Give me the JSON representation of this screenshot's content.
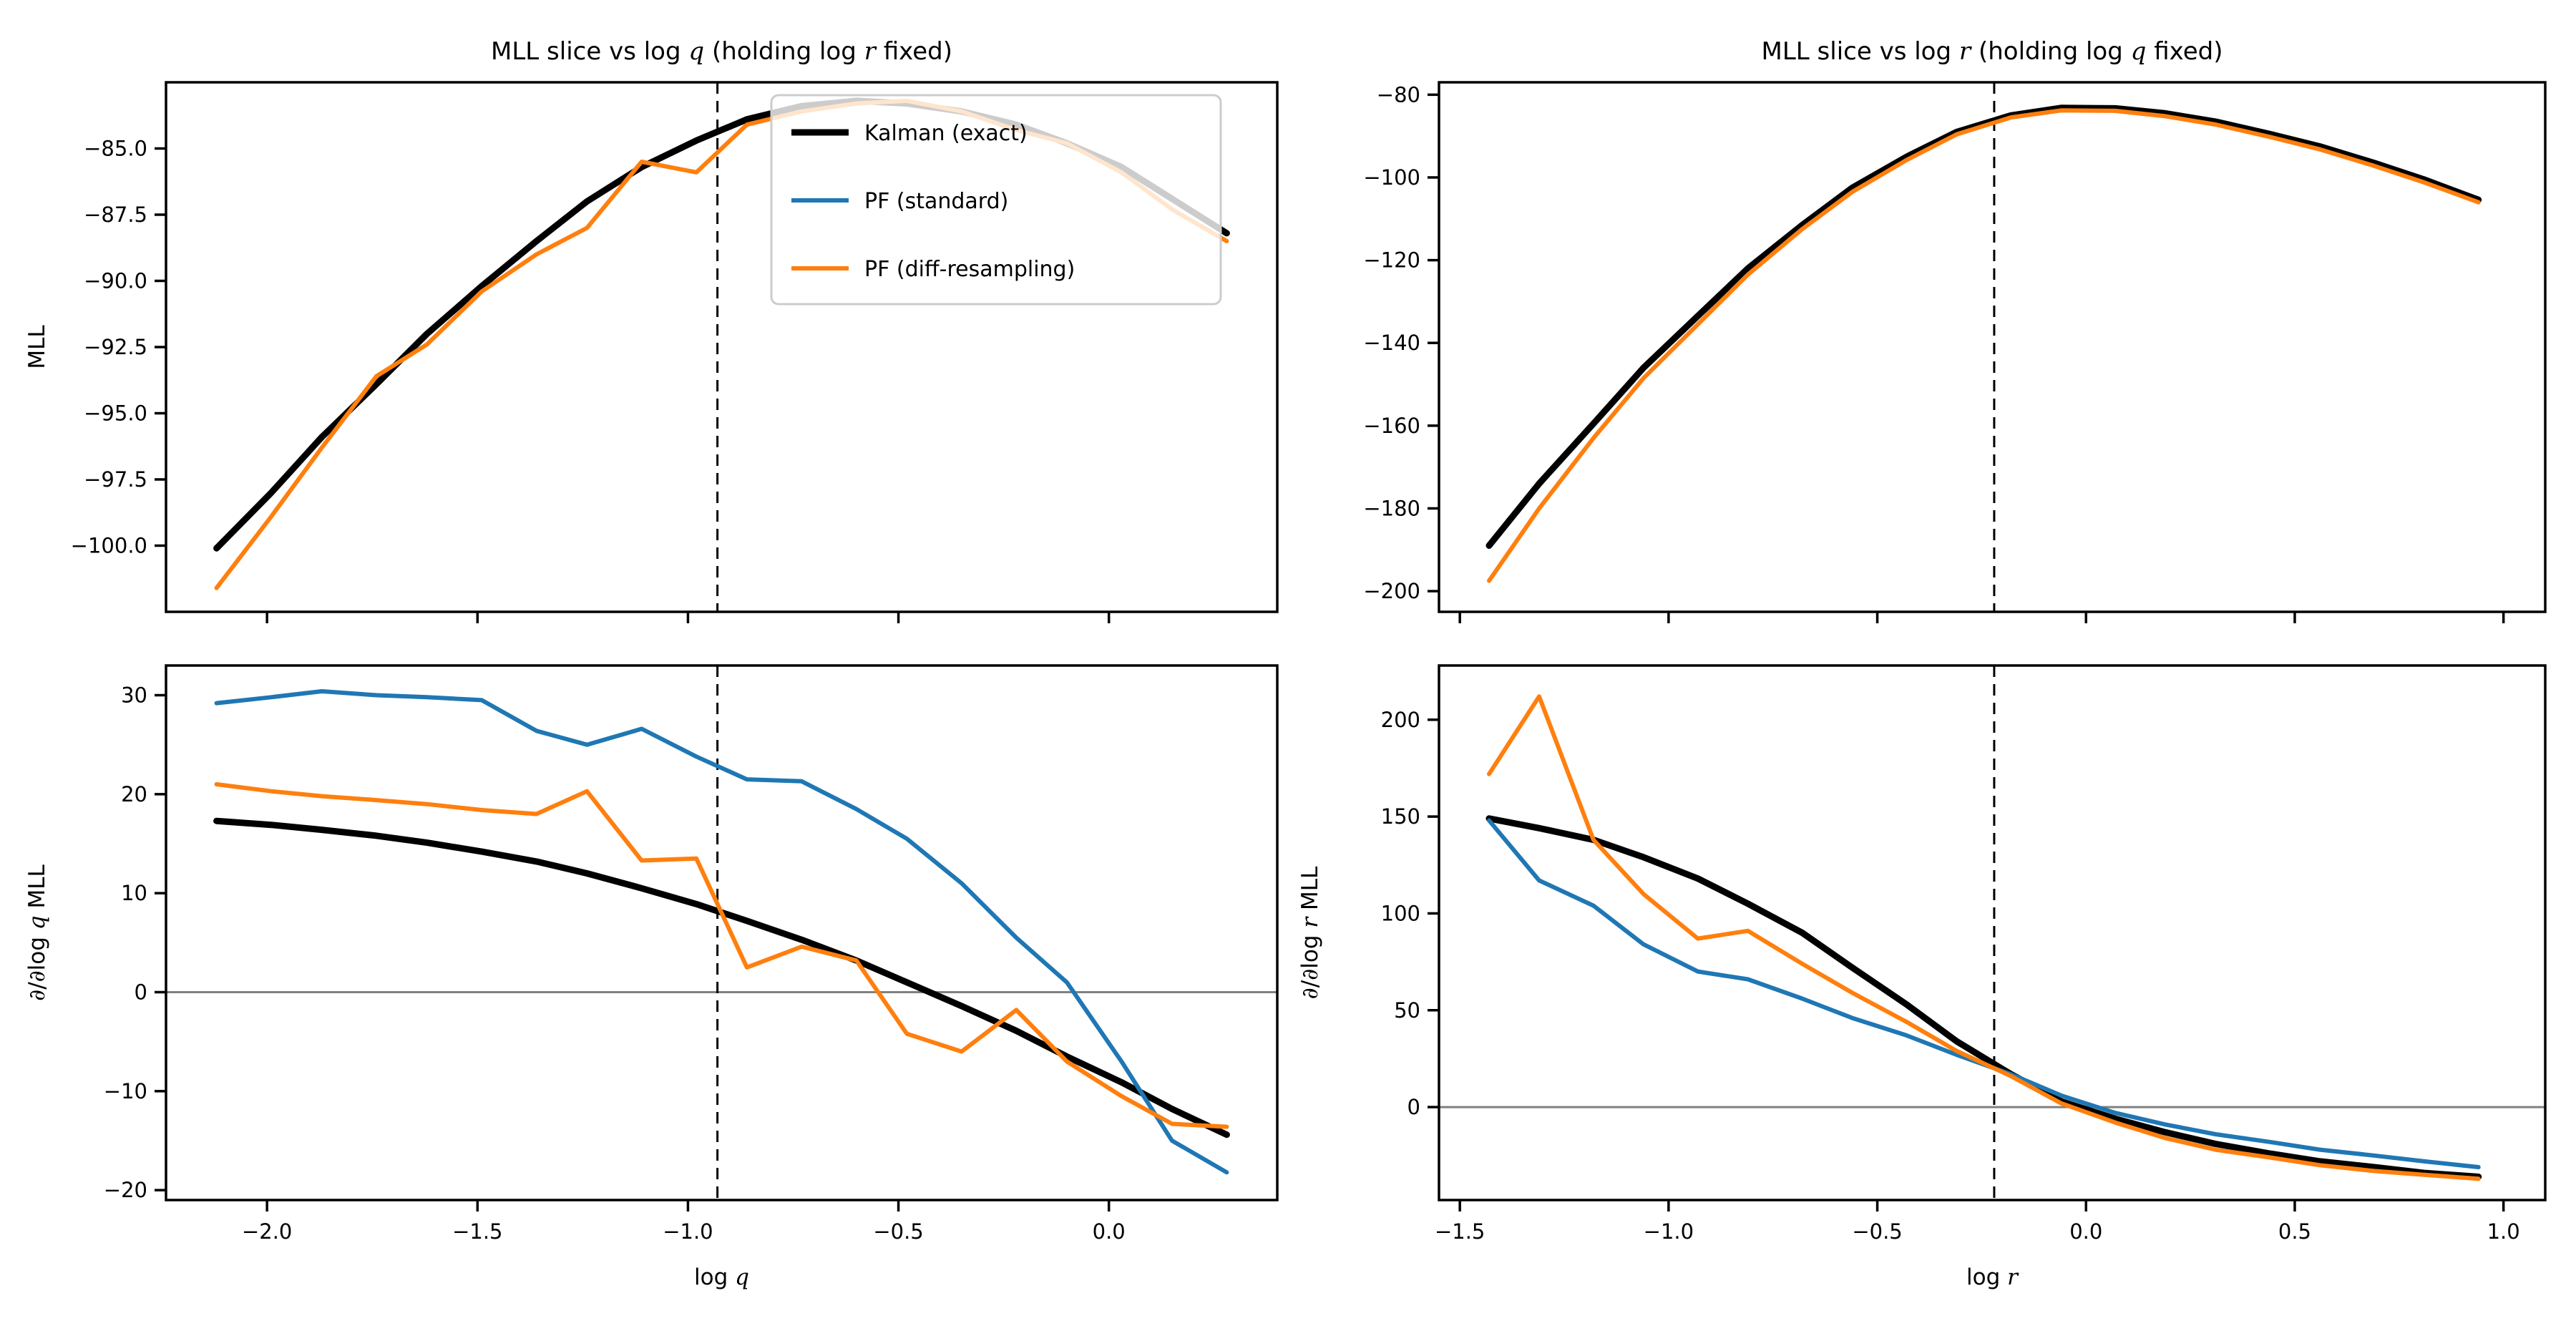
{
  "figure": {
    "background": "#ffffff",
    "accent_colors": {
      "kalman": "#000000",
      "pf_standard": "#1f77b4",
      "pf_diff": "#ff7f0e",
      "zero_line": "#808080",
      "dashed_line": "#000000",
      "legend_border": "#cccccc"
    }
  },
  "legend": {
    "entries": [
      {
        "label": "Kalman (exact)",
        "color": "#000000",
        "lw": 9
      },
      {
        "label": "PF (standard)",
        "color": "#1f77b4",
        "lw": 6
      },
      {
        "label": "PF (diff-resampling)",
        "color": "#ff7f0e",
        "lw": 6
      }
    ]
  },
  "chart_data": [
    {
      "type": "line",
      "id": "mll-vs-logq",
      "title": "MLL slice vs log q (holding log r fixed)",
      "xlabel": "",
      "ylabel": "MLL",
      "xlim": [
        -2.24,
        0.4
      ],
      "ylim": [
        -102.5,
        -82.5
      ],
      "grid": false,
      "vline": -0.93,
      "hline": null,
      "has_legend": true,
      "xticks": {
        "values": [
          -2.0,
          -1.5,
          -1.0,
          -0.5,
          0.0
        ],
        "labels": [
          "−2.0",
          "−1.5",
          "−1.0",
          "−0.5",
          "0.0"
        ],
        "show_labels": false
      },
      "yticks": {
        "values": [
          -85.0,
          -87.5,
          -90.0,
          -92.5,
          -95.0,
          -97.5,
          -100.0
        ],
        "labels": [
          "−85.0",
          "−87.5",
          "−90.0",
          "−92.5",
          "−95.0",
          "−97.5",
          "−100.0"
        ]
      },
      "x": [
        -2.12,
        -1.99,
        -1.87,
        -1.74,
        -1.62,
        -1.49,
        -1.36,
        -1.24,
        -1.11,
        -0.98,
        -0.86,
        -0.73,
        -0.6,
        -0.48,
        -0.35,
        -0.22,
        -0.1,
        0.03,
        0.15,
        0.28
      ],
      "series": [
        {
          "name": "Kalman (exact)",
          "color": "#000000",
          "lw": 9,
          "values": [
            -100.1,
            -98.0,
            -95.9,
            -93.9,
            -92.0,
            -90.2,
            -88.5,
            -87.0,
            -85.7,
            -84.7,
            -83.9,
            -83.4,
            -83.2,
            -83.3,
            -83.6,
            -84.1,
            -84.8,
            -85.7,
            -86.9,
            -88.2
          ]
        },
        {
          "name": "PF (diff-resampling)",
          "color": "#ff7f0e",
          "lw": 6,
          "values": [
            -101.6,
            -98.9,
            -96.3,
            -93.6,
            -92.4,
            -90.4,
            -89.0,
            -88.0,
            -85.5,
            -85.9,
            -84.1,
            -83.6,
            -83.3,
            -83.2,
            -83.6,
            -84.3,
            -84.8,
            -85.9,
            -87.3,
            -88.5
          ]
        }
      ]
    },
    {
      "type": "line",
      "id": "mll-vs-logr",
      "title": "MLL slice vs log r (holding log q fixed)",
      "xlabel": "",
      "ylabel": "",
      "xlim": [
        -1.55,
        1.1
      ],
      "ylim": [
        -205,
        -77
      ],
      "grid": false,
      "vline": -0.22,
      "hline": null,
      "has_legend": false,
      "xticks": {
        "values": [
          -1.5,
          -1.0,
          -0.5,
          0.0,
          0.5,
          1.0
        ],
        "labels": [
          "−1.5",
          "−1.0",
          "−0.5",
          "0.0",
          "0.5",
          "1.0"
        ],
        "show_labels": false
      },
      "yticks": {
        "values": [
          -80,
          -100,
          -120,
          -140,
          -160,
          -180,
          -200
        ],
        "labels": [
          "−80",
          "−100",
          "−120",
          "−140",
          "−160",
          "−180",
          "−200"
        ]
      },
      "x": [
        -1.43,
        -1.31,
        -1.18,
        -1.06,
        -0.93,
        -0.81,
        -0.68,
        -0.56,
        -0.43,
        -0.31,
        -0.18,
        -0.06,
        0.07,
        0.19,
        0.31,
        0.44,
        0.56,
        0.69,
        0.81,
        0.94
      ],
      "series": [
        {
          "name": "Kalman (exact)",
          "color": "#000000",
          "lw": 9,
          "values": [
            -189,
            -174,
            -159.5,
            -146,
            -133.5,
            -122,
            -111.5,
            -102.5,
            -95,
            -89,
            -85,
            -83.2,
            -83.3,
            -84.5,
            -86.5,
            -89.5,
            -92.5,
            -96.5,
            -100.5,
            -105.4
          ]
        },
        {
          "name": "PF (diff-resampling)",
          "color": "#ff7f0e",
          "lw": 6,
          "values": [
            -197.5,
            -180,
            -163,
            -148.5,
            -135.5,
            -123.5,
            -112.5,
            -103.5,
            -95.8,
            -89.6,
            -85.5,
            -83.8,
            -83.9,
            -85.2,
            -87.2,
            -90.2,
            -93.2,
            -97.2,
            -101.2,
            -106
          ]
        }
      ]
    },
    {
      "type": "line",
      "id": "dmll-dlogq",
      "title": "",
      "xlabel": "log q",
      "ylabel": "∂/∂log q MLL",
      "xlim": [
        -2.24,
        0.4
      ],
      "ylim": [
        -21,
        33
      ],
      "grid": false,
      "vline": -0.93,
      "hline": 0,
      "has_legend": false,
      "xticks": {
        "values": [
          -2.0,
          -1.5,
          -1.0,
          -0.5,
          0.0
        ],
        "labels": [
          "−2.0",
          "−1.5",
          "−1.0",
          "−0.5",
          "0.0"
        ],
        "show_labels": true
      },
      "yticks": {
        "values": [
          30,
          20,
          10,
          0,
          -10,
          -20
        ],
        "labels": [
          "30",
          "20",
          "10",
          "0",
          "−10",
          "−20"
        ]
      },
      "x": [
        -2.12,
        -1.99,
        -1.87,
        -1.74,
        -1.62,
        -1.49,
        -1.36,
        -1.24,
        -1.11,
        -0.98,
        -0.86,
        -0.73,
        -0.6,
        -0.48,
        -0.35,
        -0.22,
        -0.1,
        0.03,
        0.15,
        0.28
      ],
      "series": [
        {
          "name": "Kalman (exact)",
          "color": "#000000",
          "lw": 9,
          "values": [
            17.3,
            16.9,
            16.4,
            15.8,
            15.1,
            14.2,
            13.2,
            12.0,
            10.5,
            8.9,
            7.2,
            5.3,
            3.2,
            1.0,
            -1.4,
            -3.9,
            -6.5,
            -9.1,
            -11.8,
            -14.4
          ]
        },
        {
          "name": "PF (standard)",
          "color": "#1f77b4",
          "lw": 6,
          "values": [
            29.2,
            29.8,
            30.4,
            30.0,
            29.8,
            29.5,
            26.4,
            25.0,
            26.6,
            23.8,
            21.5,
            21.3,
            18.5,
            15.5,
            11.0,
            5.5,
            1.0,
            -7.0,
            -15.0,
            -18.2
          ]
        },
        {
          "name": "PF (diff-resampling)",
          "color": "#ff7f0e",
          "lw": 6,
          "values": [
            21.0,
            20.3,
            19.8,
            19.4,
            19.0,
            18.4,
            18.0,
            20.3,
            13.3,
            13.5,
            2.5,
            4.6,
            3.2,
            -4.2,
            -6.0,
            -1.8,
            -7.0,
            -10.5,
            -13.3,
            -13.6
          ]
        }
      ]
    },
    {
      "type": "line",
      "id": "dmll-dlogr",
      "title": "",
      "xlabel": "log r",
      "ylabel": "∂/∂log r MLL",
      "xlim": [
        -1.55,
        1.1
      ],
      "ylim": [
        -48,
        228
      ],
      "grid": false,
      "vline": -0.22,
      "hline": 0,
      "has_legend": false,
      "xticks": {
        "values": [
          -1.5,
          -1.0,
          -0.5,
          0.0,
          0.5,
          1.0
        ],
        "labels": [
          "−1.5",
          "−1.0",
          "−0.5",
          "0.0",
          "0.5",
          "1.0"
        ],
        "show_labels": true
      },
      "yticks": {
        "values": [
          200,
          150,
          100,
          50,
          0
        ],
        "labels": [
          "200",
          "150",
          "100",
          "50",
          "0"
        ]
      },
      "x": [
        -1.43,
        -1.31,
        -1.18,
        -1.06,
        -0.93,
        -0.81,
        -0.68,
        -0.56,
        -0.43,
        -0.31,
        -0.18,
        -0.06,
        0.07,
        0.19,
        0.31,
        0.44,
        0.56,
        0.69,
        0.81,
        0.94
      ],
      "series": [
        {
          "name": "Kalman (exact)",
          "color": "#000000",
          "lw": 9,
          "values": [
            149,
            144,
            138,
            129,
            118,
            105,
            90,
            72,
            53,
            34,
            17,
            3,
            -6,
            -13,
            -19,
            -24,
            -28,
            -31,
            -34,
            -36
          ]
        },
        {
          "name": "PF (standard)",
          "color": "#1f77b4",
          "lw": 6,
          "values": [
            148,
            117,
            104,
            84,
            70,
            66,
            56,
            46,
            37,
            27,
            17,
            6,
            -3,
            -9,
            -14,
            -18,
            -22,
            -25,
            -28,
            -31
          ]
        },
        {
          "name": "PF (diff-resampling)",
          "color": "#ff7f0e",
          "lw": 6,
          "values": [
            172,
            212,
            138,
            110,
            87,
            91,
            74,
            59,
            44,
            29,
            16,
            2,
            -8,
            -16,
            -22,
            -26,
            -30,
            -33,
            -35,
            -37
          ]
        }
      ]
    }
  ]
}
